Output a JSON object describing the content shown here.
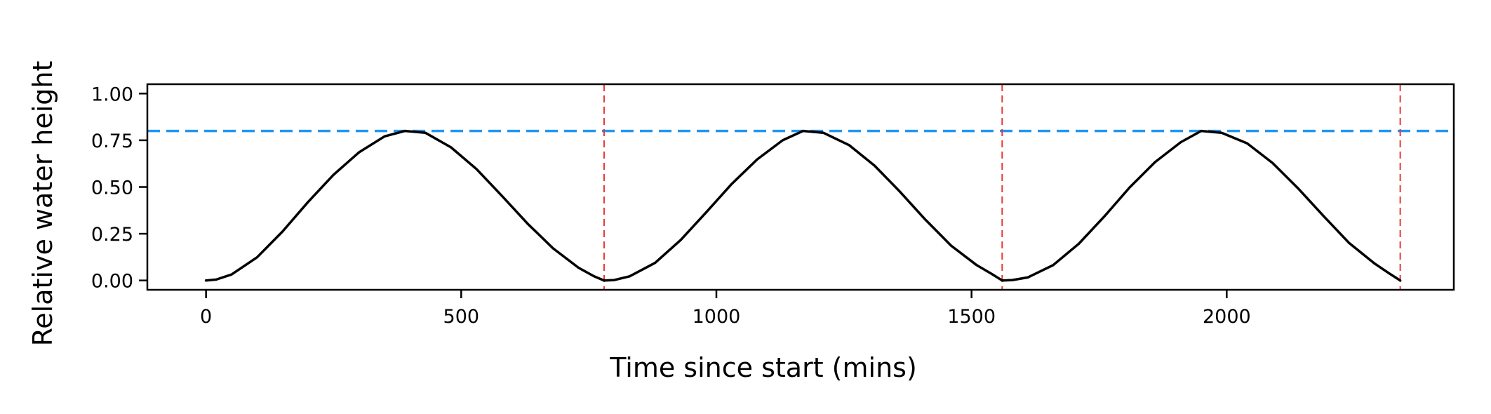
{
  "chart_data": {
    "type": "line",
    "title": "",
    "xlabel": "Time since start (mins)",
    "ylabel": "Relative water height",
    "xlim": [
      -115,
      2445
    ],
    "ylim": [
      -0.05,
      1.05
    ],
    "x_ticks": [
      0,
      500,
      1000,
      1500,
      2000
    ],
    "x_tick_labels": [
      "0",
      "500",
      "1000",
      "1500",
      "2000"
    ],
    "y_ticks": [
      0,
      0.25,
      0.5,
      0.75,
      1.0
    ],
    "y_tick_labels": [
      "0.00",
      "0.25",
      "0.50",
      "0.75",
      "1.00"
    ],
    "grid": false,
    "legend": "none",
    "series": [
      {
        "color": "#000000",
        "x": [
          0,
          20,
          50,
          100,
          150,
          200,
          250,
          300,
          350,
          390,
          430,
          480,
          530,
          580,
          630,
          680,
          730,
          760,
          780,
          800,
          830,
          880,
          930,
          980,
          1030,
          1080,
          1130,
          1170,
          1210,
          1260,
          1310,
          1360,
          1410,
          1460,
          1510,
          1540,
          1560,
          1580,
          1610,
          1660,
          1710,
          1760,
          1810,
          1860,
          1910,
          1950,
          1990,
          2040,
          2090,
          2140,
          2190,
          2240,
          2290,
          2320,
          2340
        ],
        "y": [
          0.0,
          0.005,
          0.032,
          0.124,
          0.262,
          0.42,
          0.566,
          0.686,
          0.771,
          0.8,
          0.79,
          0.712,
          0.596,
          0.452,
          0.304,
          0.172,
          0.068,
          0.023,
          0.0,
          0.002,
          0.022,
          0.094,
          0.216,
          0.364,
          0.516,
          0.648,
          0.75,
          0.8,
          0.79,
          0.724,
          0.614,
          0.474,
          0.324,
          0.186,
          0.082,
          0.034,
          0.0,
          0.002,
          0.016,
          0.082,
          0.196,
          0.342,
          0.498,
          0.634,
          0.74,
          0.8,
          0.79,
          0.734,
          0.628,
          0.492,
          0.344,
          0.2,
          0.09,
          0.035,
          0.0
        ]
      }
    ],
    "reference_lines": [
      {
        "orientation": "horizontal",
        "value": 0.8,
        "color": "#2196F3",
        "style": "dashed"
      },
      {
        "orientation": "vertical",
        "value": 780,
        "color": "#E53935",
        "style": "dashed"
      },
      {
        "orientation": "vertical",
        "value": 1560,
        "color": "#E53935",
        "style": "dashed"
      },
      {
        "orientation": "vertical",
        "value": 2340,
        "color": "#E53935",
        "style": "dashed"
      }
    ]
  }
}
